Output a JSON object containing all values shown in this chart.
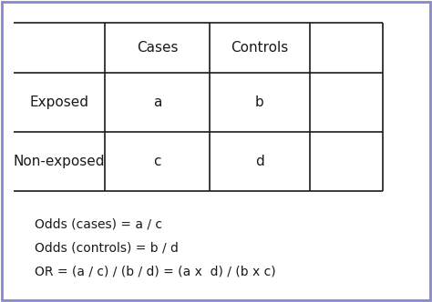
{
  "bg_color": "#ffffff",
  "border_color": "#8888cc",
  "line_color": "#1a1a1a",
  "col_headers": [
    "Cases",
    "Controls"
  ],
  "row_headers": [
    "Exposed",
    "Non-exposed"
  ],
  "cell_values": [
    [
      "a",
      "b"
    ],
    [
      "c",
      "d"
    ]
  ],
  "formula_lines": [
    "Odds (cases) = a / c",
    "Odds (controls) = b / d",
    "OR = (a / c) / (b / d) = (a x  d) / (b x c)"
  ],
  "font_size": 11,
  "formula_font_size": 10,
  "fig_width": 4.74,
  "fig_height": 3.32,
  "dpi": 100
}
